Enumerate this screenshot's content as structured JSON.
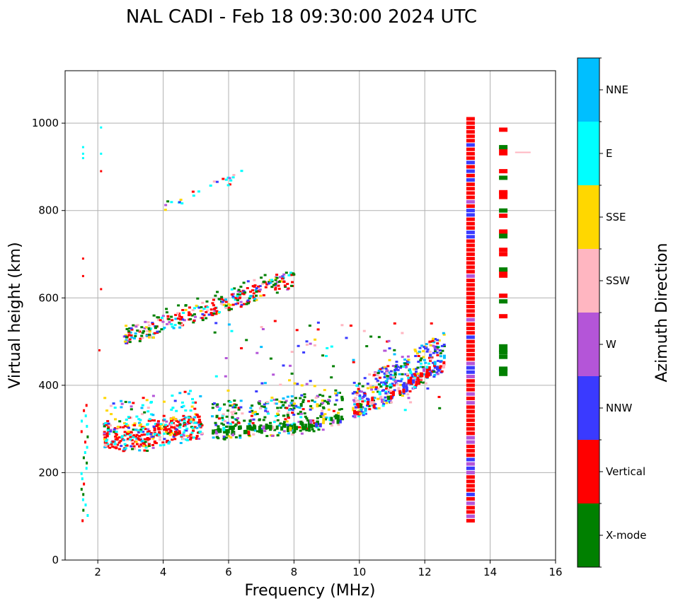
{
  "chart_data": {
    "type": "scatter",
    "title": "NAL CADI - Feb 18 09:30:00 2024 UTC",
    "xlabel": "Frequency (MHz)",
    "ylabel": "Virtual height (km)",
    "xlim": [
      1,
      16
    ],
    "ylim": [
      0,
      1120
    ],
    "xticks": [
      2,
      4,
      6,
      8,
      10,
      12,
      14,
      16
    ],
    "yticks": [
      0,
      200,
      400,
      600,
      800,
      1000
    ],
    "grid": true,
    "colorbar": {
      "label": "Azimuth Direction",
      "categories": [
        {
          "name": "X-mode",
          "color": "#008000"
        },
        {
          "name": "Vertical",
          "color": "#ff0000"
        },
        {
          "name": "NNW",
          "color": "#3a3aff"
        },
        {
          "name": "W",
          "color": "#b455d8"
        },
        {
          "name": "SSW",
          "color": "#ffb6c1"
        },
        {
          "name": "SSE",
          "color": "#ffd700"
        },
        {
          "name": "E",
          "color": "#00ffff"
        },
        {
          "name": "NNE",
          "color": "#00bfff"
        }
      ]
    },
    "series": [
      {
        "name": "F-layer main trace (Vertical)",
        "dir": "Vertical",
        "points": [
          [
            2.2,
            265
          ],
          [
            2.5,
            262
          ],
          [
            2.8,
            258
          ],
          [
            3.1,
            262
          ],
          [
            3.4,
            266
          ],
          [
            3.7,
            270
          ],
          [
            4.0,
            272
          ],
          [
            4.3,
            276
          ],
          [
            4.6,
            280
          ],
          [
            4.9,
            282
          ],
          [
            5.2,
            285
          ]
        ]
      },
      {
        "name": "F-layer main trace (X-mode)",
        "dir": "X-mode",
        "points": [
          [
            5.5,
            288
          ],
          [
            6.0,
            290
          ],
          [
            6.5,
            292
          ],
          [
            7.0,
            295
          ],
          [
            7.5,
            298
          ],
          [
            8.0,
            300
          ],
          [
            8.5,
            305
          ],
          [
            9.0,
            310
          ],
          [
            9.5,
            318
          ]
        ]
      },
      {
        "name": "F-layer upper trace (NNW)",
        "dir": "NNW",
        "points": [
          [
            9.8,
            330
          ],
          [
            10.2,
            345
          ],
          [
            10.6,
            360
          ],
          [
            11.0,
            375
          ],
          [
            11.4,
            392
          ],
          [
            11.8,
            410
          ],
          [
            12.2,
            425
          ],
          [
            12.6,
            445
          ]
        ]
      },
      {
        "name": "Second hop trace",
        "dir": "Vertical",
        "points": [
          [
            2.8,
            500
          ],
          [
            3.2,
            508
          ],
          [
            3.6,
            515
          ],
          [
            4.0,
            525
          ],
          [
            4.4,
            535
          ],
          [
            4.8,
            545
          ],
          [
            5.2,
            555
          ],
          [
            5.6,
            565
          ],
          [
            6.0,
            575
          ],
          [
            6.5,
            588
          ],
          [
            7.0,
            600
          ],
          [
            7.5,
            615
          ],
          [
            8.0,
            630
          ]
        ]
      },
      {
        "name": "Third hop trace",
        "dir": "Vertical",
        "points": [
          [
            4.0,
            800
          ],
          [
            4.5,
            815
          ],
          [
            5.0,
            830
          ],
          [
            5.5,
            850
          ],
          [
            6.0,
            860
          ],
          [
            6.5,
            885
          ]
        ]
      },
      {
        "name": "Interference 13.4 MHz",
        "dir": "Vertical",
        "points": [
          [
            13.4,
            90
          ],
          [
            13.4,
            1010
          ]
        ]
      },
      {
        "name": "Interference 14.4 MHz",
        "dir": "Vertical",
        "points": [
          [
            14.4,
            430
          ],
          [
            14.4,
            990
          ]
        ]
      },
      {
        "name": "Low frequency echoes 1.6 MHz",
        "dir": "E",
        "points": [
          [
            1.6,
            90
          ],
          [
            1.6,
            360
          ]
        ]
      }
    ]
  }
}
